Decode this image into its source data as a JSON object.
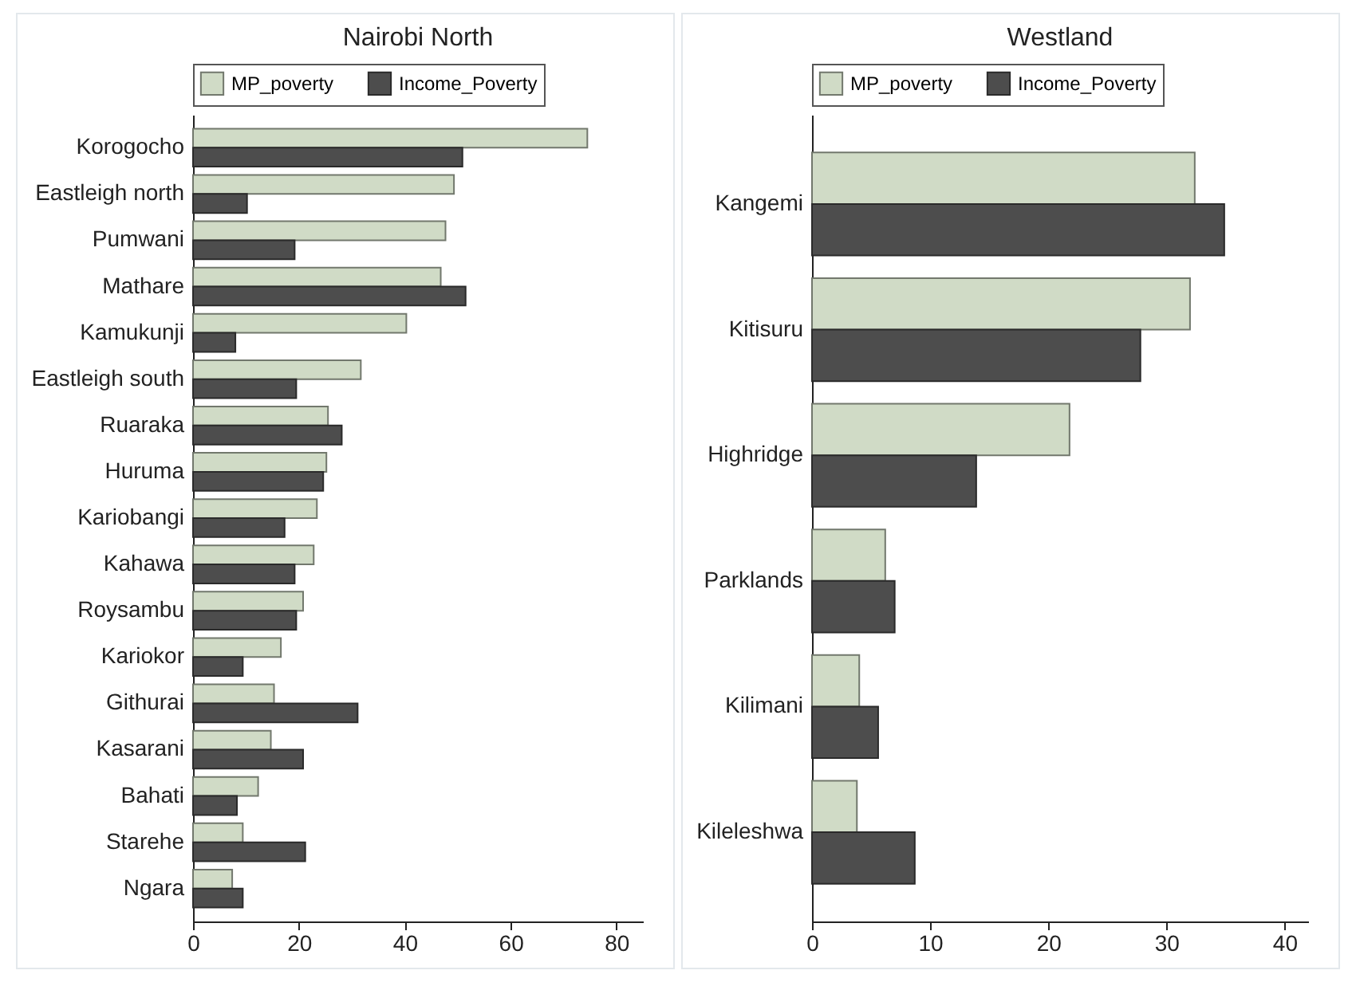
{
  "chart_data": [
    {
      "type": "bar",
      "orientation": "horizontal",
      "title": "Nairobi North",
      "legend": "top",
      "grid": false,
      "categories": [
        "Korogocho",
        "Eastleigh north",
        "Pumwani",
        "Mathare",
        "Kamukunji",
        "Eastleigh south",
        "Ruaraka",
        "Huruma",
        "Kariobangi",
        "Kahawa",
        "Roysambu",
        "Kariokor",
        "Githurai",
        "Kasarani",
        "Bahati",
        "Starehe",
        "Ngara"
      ],
      "series": [
        {
          "name": "MP_poverty",
          "color": "#d0dbc6",
          "values": [
            74.5,
            49.3,
            47.7,
            46.8,
            40.3,
            31.7,
            25.5,
            25.2,
            23.4,
            22.8,
            20.8,
            16.6,
            15.3,
            14.7,
            12.3,
            9.4,
            7.4
          ]
        },
        {
          "name": "Income_Poverty",
          "color": "#4d4d4d",
          "values": [
            50.9,
            10.2,
            19.2,
            51.5,
            8.0,
            19.5,
            28.1,
            24.6,
            17.3,
            19.2,
            19.5,
            9.4,
            31.1,
            20.8,
            8.3,
            21.2,
            9.4
          ]
        }
      ],
      "xlim": [
        0,
        85
      ],
      "xticks": [
        0,
        20,
        40,
        60,
        80
      ]
    },
    {
      "type": "bar",
      "orientation": "horizontal",
      "title": "Westland",
      "legend": "top",
      "grid": false,
      "categories": [
        "Kangemi",
        "Kitisuru",
        "Highridge",
        "Parklands",
        "Kilimani",
        "Kileleshwa"
      ],
      "series": [
        {
          "name": "MP_poverty",
          "color": "#d0dbc6",
          "values": [
            32.4,
            32.0,
            21.8,
            6.2,
            4.0,
            3.8
          ]
        },
        {
          "name": "Income_Poverty",
          "color": "#4d4d4d",
          "values": [
            34.9,
            27.8,
            13.9,
            7.0,
            5.6,
            8.7
          ]
        }
      ],
      "xlim": [
        0,
        42
      ],
      "xticks": [
        0,
        10,
        20,
        30,
        40
      ]
    }
  ]
}
